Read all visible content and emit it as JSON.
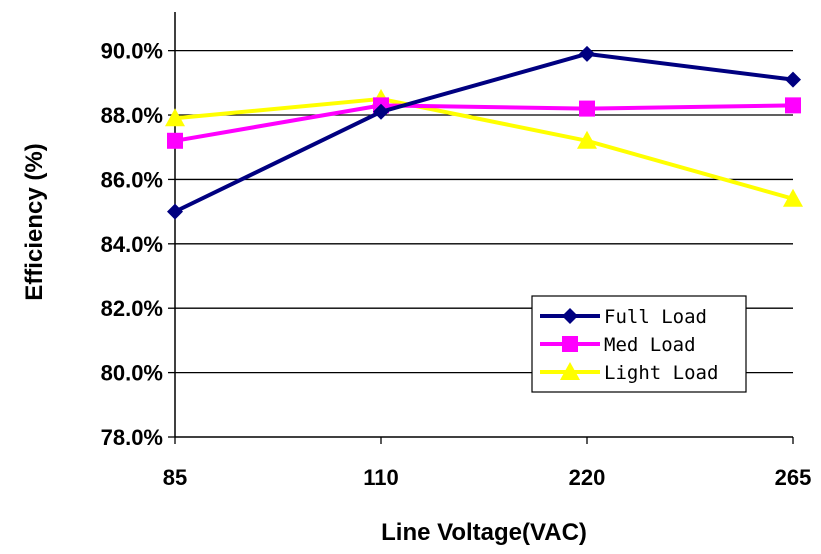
{
  "chart_data": {
    "type": "line",
    "title": "",
    "xlabel": "Line Voltage(VAC)",
    "ylabel": "Efficiency (%)",
    "categories": [
      "85",
      "110",
      "220",
      "265"
    ],
    "ylim": [
      78.0,
      91.2
    ],
    "yticks": [
      "78.0%",
      "80.0%",
      "82.0%",
      "84.0%",
      "86.0%",
      "88.0%",
      "90.0%"
    ],
    "ytick_values": [
      78,
      80,
      82,
      84,
      86,
      88,
      90
    ],
    "grid": true,
    "legend_position": "bottom-right",
    "series": [
      {
        "name": "Full Load",
        "values": [
          85.0,
          88.1,
          89.9,
          89.1
        ],
        "color": "#000080",
        "marker": "diamond"
      },
      {
        "name": "Med Load",
        "values": [
          87.2,
          88.3,
          88.2,
          88.3
        ],
        "color": "#ff00ff",
        "marker": "square"
      },
      {
        "name": "Light Load",
        "values": [
          87.9,
          88.5,
          87.2,
          85.4
        ],
        "color": "#ffff00",
        "marker": "triangle"
      }
    ]
  }
}
